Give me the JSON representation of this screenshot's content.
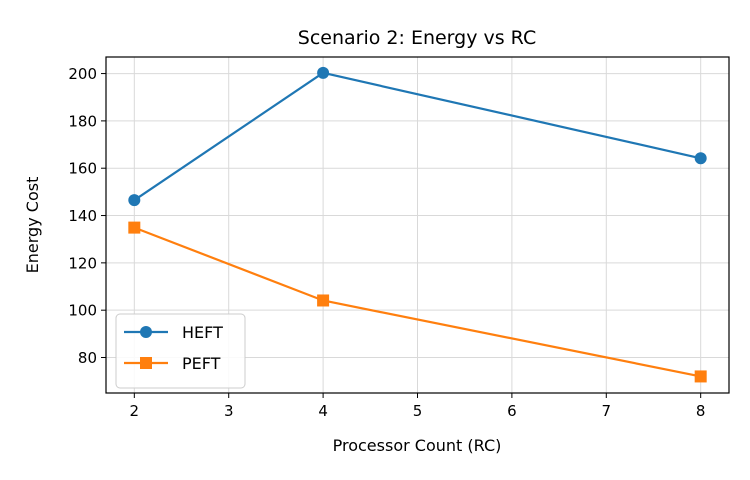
{
  "chart_data": {
    "type": "line",
    "title": "Scenario 2: Energy vs RC",
    "xlabel": "Processor Count (RC)",
    "ylabel": "Energy Cost",
    "x": [
      2,
      4,
      8
    ],
    "xlim": [
      1.7,
      8.3
    ],
    "ylim": [
      65,
      207
    ],
    "xticks": [
      2,
      3,
      4,
      5,
      6,
      7,
      8
    ],
    "yticks": [
      80,
      100,
      120,
      140,
      160,
      180,
      200
    ],
    "grid": true,
    "legend_position": "lower-left",
    "series": [
      {
        "name": "HEFT",
        "values": [
          146.5,
          200.3,
          164.2
        ],
        "color": "#1f77b4",
        "marker": "circle"
      },
      {
        "name": "PEFT",
        "values": [
          134.9,
          104.1,
          72.0
        ],
        "color": "#ff7f0e",
        "marker": "square"
      }
    ]
  }
}
